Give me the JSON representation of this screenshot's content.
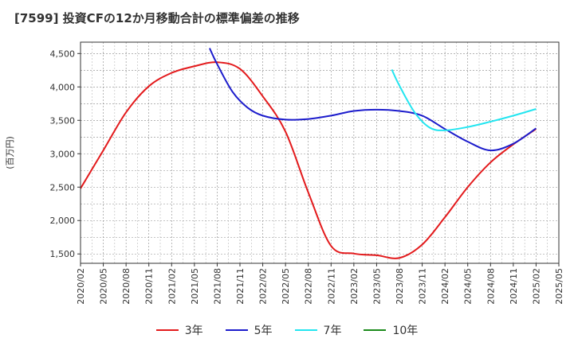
{
  "title": "[7599]  投資CFの12か月移動合計の標準偏差の推移",
  "chart_data": {
    "type": "line",
    "title": "[7599]  投資CFの12か月移動合計の標準偏差の推移",
    "ylabel": "(百万円)",
    "xlabel": "",
    "ylim": [
      1360,
      4670
    ],
    "yticks": [
      1500,
      2000,
      2500,
      3000,
      3500,
      4000,
      4500
    ],
    "ytick_labels": [
      "1,500",
      "2,000",
      "2,500",
      "3,000",
      "3,500",
      "4,000",
      "4,500"
    ],
    "xtick_labels": [
      "2020/02",
      "2020/05",
      "2020/08",
      "2020/11",
      "2021/02",
      "2021/05",
      "2021/08",
      "2021/11",
      "2022/02",
      "2022/05",
      "2022/08",
      "2022/11",
      "2023/02",
      "2023/05",
      "2023/08",
      "2023/11",
      "2024/02",
      "2024/05",
      "2024/08",
      "2024/11",
      "2025/02",
      "2025/05"
    ],
    "grid": true,
    "legend_position": "bottom",
    "series": [
      {
        "name": "3年",
        "color": "#e31a1c",
        "points": [
          [
            "2020/02",
            2480
          ],
          [
            "2020/05",
            3050
          ],
          [
            "2020/08",
            3620
          ],
          [
            "2020/11",
            4010
          ],
          [
            "2021/02",
            4210
          ],
          [
            "2021/05",
            4310
          ],
          [
            "2021/08",
            4370
          ],
          [
            "2021/11",
            4270
          ],
          [
            "2022/02",
            3860
          ],
          [
            "2022/05",
            3330
          ],
          [
            "2022/08",
            2420
          ],
          [
            "2022/11",
            1620
          ],
          [
            "2023/02",
            1505
          ],
          [
            "2023/05",
            1480
          ],
          [
            "2023/08",
            1440
          ],
          [
            "2023/11",
            1640
          ],
          [
            "2024/02",
            2050
          ],
          [
            "2024/05",
            2500
          ],
          [
            "2024/08",
            2870
          ],
          [
            "2024/11",
            3140
          ],
          [
            "2025/02",
            3370
          ]
        ]
      },
      {
        "name": "5年",
        "color": "#1c1ccc",
        "points": [
          [
            "2021/07",
            4580
          ],
          [
            "2021/08",
            4340
          ],
          [
            "2021/10",
            3930
          ],
          [
            "2021/12",
            3690
          ],
          [
            "2022/02",
            3570
          ],
          [
            "2022/05",
            3510
          ],
          [
            "2022/08",
            3520
          ],
          [
            "2022/11",
            3570
          ],
          [
            "2023/02",
            3640
          ],
          [
            "2023/05",
            3660
          ],
          [
            "2023/08",
            3640
          ],
          [
            "2023/11",
            3570
          ],
          [
            "2024/02",
            3370
          ],
          [
            "2024/05",
            3180
          ],
          [
            "2024/08",
            3050
          ],
          [
            "2024/11",
            3150
          ],
          [
            "2025/02",
            3380
          ]
        ]
      },
      {
        "name": "7年",
        "color": "#22e5f0",
        "points": [
          [
            "2023/07",
            4260
          ],
          [
            "2023/08",
            4020
          ],
          [
            "2023/10",
            3620
          ],
          [
            "2023/12",
            3390
          ],
          [
            "2024/02",
            3350
          ],
          [
            "2024/05",
            3400
          ],
          [
            "2024/08",
            3480
          ],
          [
            "2024/11",
            3570
          ],
          [
            "2025/02",
            3670
          ]
        ]
      },
      {
        "name": "10年",
        "color": "#1a8a1a",
        "points": []
      }
    ]
  }
}
